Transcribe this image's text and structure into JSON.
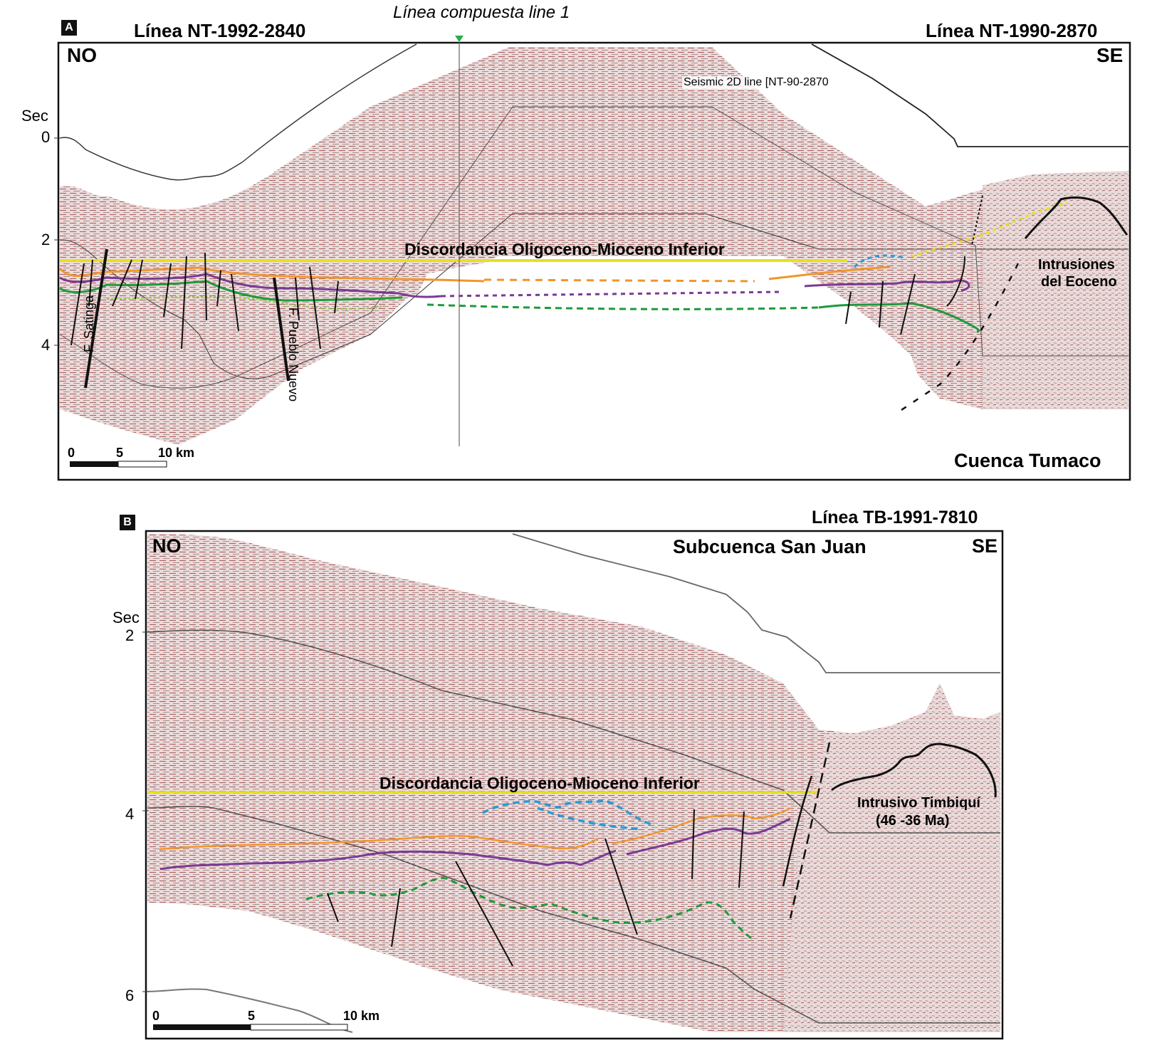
{
  "panel_a": {
    "badge": "A",
    "composite_title": "Línea compuesta line 1",
    "line_left": "Línea NT-1992-2840",
    "line_right": "Línea NT-1990-2870",
    "dir_left": "NO",
    "dir_right": "SE",
    "axis_unit": "Sec",
    "ticks": [
      "0",
      "2",
      "4"
    ],
    "seismic_caption": "Seismic 2D line [NT-90-2870",
    "unconformity": "Discordancia Oligoceno-Mioceno Inferior",
    "fault_1": "F. Satinga",
    "fault_2": "F. Pueblo Nuevo",
    "intrusion_line1": "Intrusiones",
    "intrusion_line2": "del Eoceno",
    "basin": "Cuenca Tumaco",
    "scale": {
      "zero": "0",
      "mid": "5",
      "end": "10 km"
    }
  },
  "panel_b": {
    "badge": "B",
    "line_title": "Línea TB-1991-7810",
    "dir_left": "NO",
    "dir_right": "SE",
    "subbasin": "Subcuenca San Juan",
    "axis_unit": "Sec",
    "ticks": [
      "2",
      "4",
      "6"
    ],
    "unconformity": "Discordancia Oligoceno-Mioceno Inferior",
    "intrusion_line1": "Intrusivo Timbiquí",
    "intrusion_line2": "(46 -36 Ma)",
    "scale": {
      "zero": "0",
      "mid": "5",
      "end": "10 km"
    }
  },
  "colors": {
    "unconformity": "#e8e01c",
    "horizon_orange": "#f0962a",
    "horizon_purple": "#7a3a94",
    "horizon_green": "#1f9a3a",
    "horizon_lightgreen": "#8fcf4a",
    "horizon_blue": "#2a9ad6",
    "seismic_base": "#e9d6d6",
    "seismic_red": "#8a2a2a"
  }
}
